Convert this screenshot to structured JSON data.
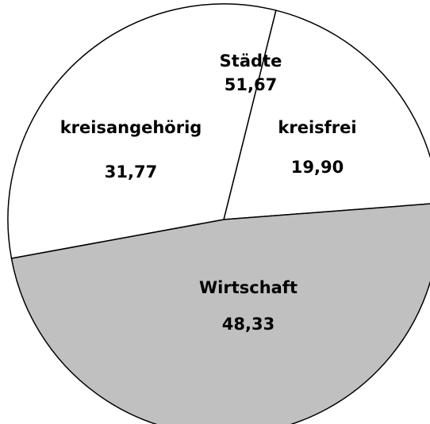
{
  "chart_data": {
    "type": "pie",
    "categories": [
      "kreisfrei",
      "Wirtschaft",
      "kreisangehörig"
    ],
    "values": [
      19.9,
      48.33,
      31.77
    ],
    "value_labels": [
      "19,90",
      "48,33",
      "31,77"
    ],
    "colors": [
      "#ffffff",
      "#c0c0c0",
      "#ffffff"
    ],
    "annotations": [
      {
        "text": "Städte",
        "value": 51.67,
        "value_label": "51,67"
      }
    ]
  }
}
